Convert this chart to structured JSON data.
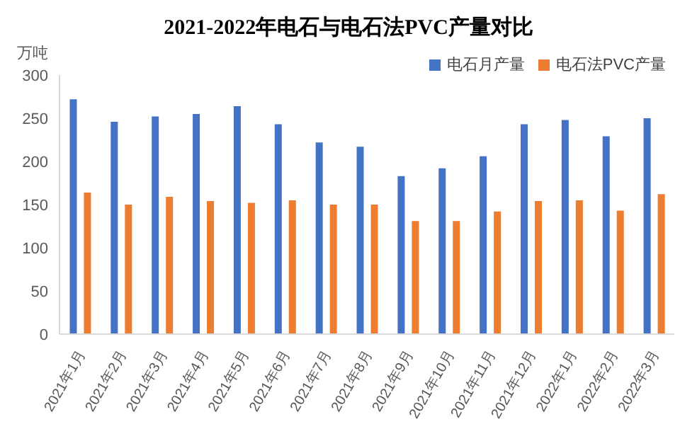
{
  "chart_data": {
    "type": "bar",
    "title": "2021-2022年电石与电石法PVC产量对比",
    "ylabel": "万吨",
    "categories": [
      "2021年1月",
      "2021年2月",
      "2021年3月",
      "2021年4月",
      "2021年5月",
      "2021年6月",
      "2021年7月",
      "2021年8月",
      "2021年9月",
      "2021年10月",
      "2021年11月",
      "2021年12月",
      "2022年1月",
      "2022年2月",
      "2022年3月"
    ],
    "series": [
      {
        "name": "电石月产量",
        "color": "#4472c4",
        "values": [
          272,
          246,
          252,
          255,
          264,
          243,
          222,
          217,
          183,
          192,
          206,
          243,
          248,
          229,
          250
        ]
      },
      {
        "name": "电石法PVC产量",
        "color": "#ed7d31",
        "values": [
          164,
          150,
          159,
          154,
          152,
          155,
          150,
          150,
          131,
          131,
          142,
          154,
          155,
          143,
          162
        ]
      }
    ],
    "ylim": [
      0,
      300
    ],
    "yticks": [
      0,
      50,
      100,
      150,
      200,
      250,
      300
    ],
    "grid": false,
    "legend": "top right"
  }
}
